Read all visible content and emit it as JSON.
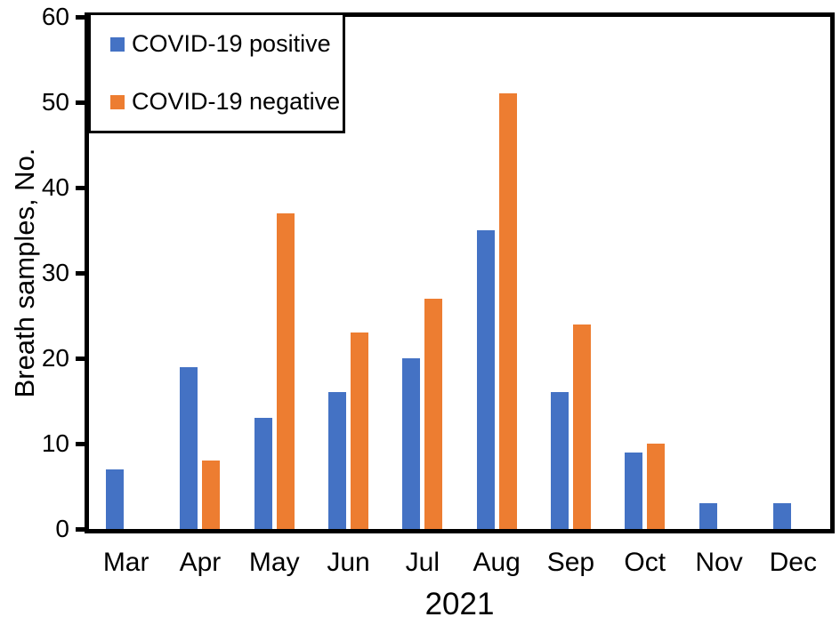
{
  "chart_data": {
    "type": "bar",
    "ylabel": "Breath samples, No.",
    "xlabel": "2021",
    "categories": [
      "Mar",
      "Apr",
      "May",
      "Jun",
      "Jul",
      "Aug",
      "Sep",
      "Oct",
      "Nov",
      "Dec"
    ],
    "series": [
      {
        "name": "COVID-19 positive",
        "color": "#4472C4",
        "values": [
          7,
          19,
          13,
          16,
          20,
          35,
          16,
          9,
          3,
          3
        ]
      },
      {
        "name": "COVID-19 negative",
        "color": "#ED7D31",
        "values": [
          0,
          8,
          37,
          23,
          27,
          51,
          24,
          10,
          0,
          0
        ]
      }
    ],
    "ylim": [
      0,
      60
    ],
    "yticks": [
      0,
      10,
      20,
      30,
      40,
      50,
      60
    ],
    "legend_position": "top-left",
    "grid": false,
    "axis_color": "#000000",
    "text_color": "#000000",
    "background": "#FFFFFF"
  }
}
